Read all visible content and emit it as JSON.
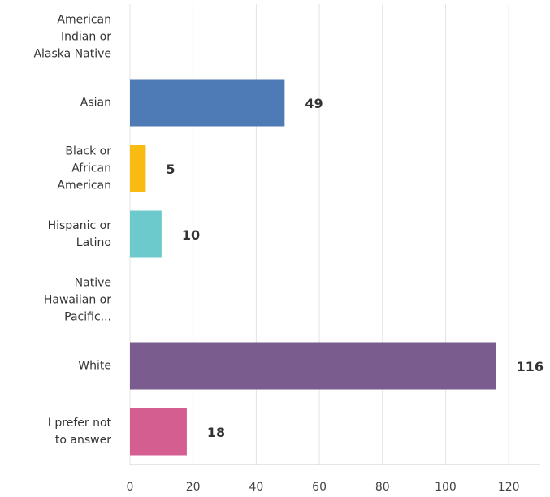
{
  "chart_data": {
    "type": "hbar",
    "categories": [
      "American\nIndian or\nAlaska Native",
      "Asian",
      "Black or\nAfrican\nAmerican",
      "Hispanic or\nLatino",
      "Native\nHawaiian or\nPacific...",
      "White",
      "I prefer not\nto answer"
    ],
    "values": [
      0,
      49,
      5,
      10,
      0,
      116,
      18
    ],
    "colors": [
      null,
      "#4e7ab5",
      "#f8bb12",
      "#6ccacd",
      null,
      "#7b5c8f",
      "#d45e8f"
    ],
    "xlim": [
      0,
      130
    ],
    "xticks": [
      0,
      20,
      40,
      60,
      80,
      100,
      120
    ],
    "grid": true
  }
}
